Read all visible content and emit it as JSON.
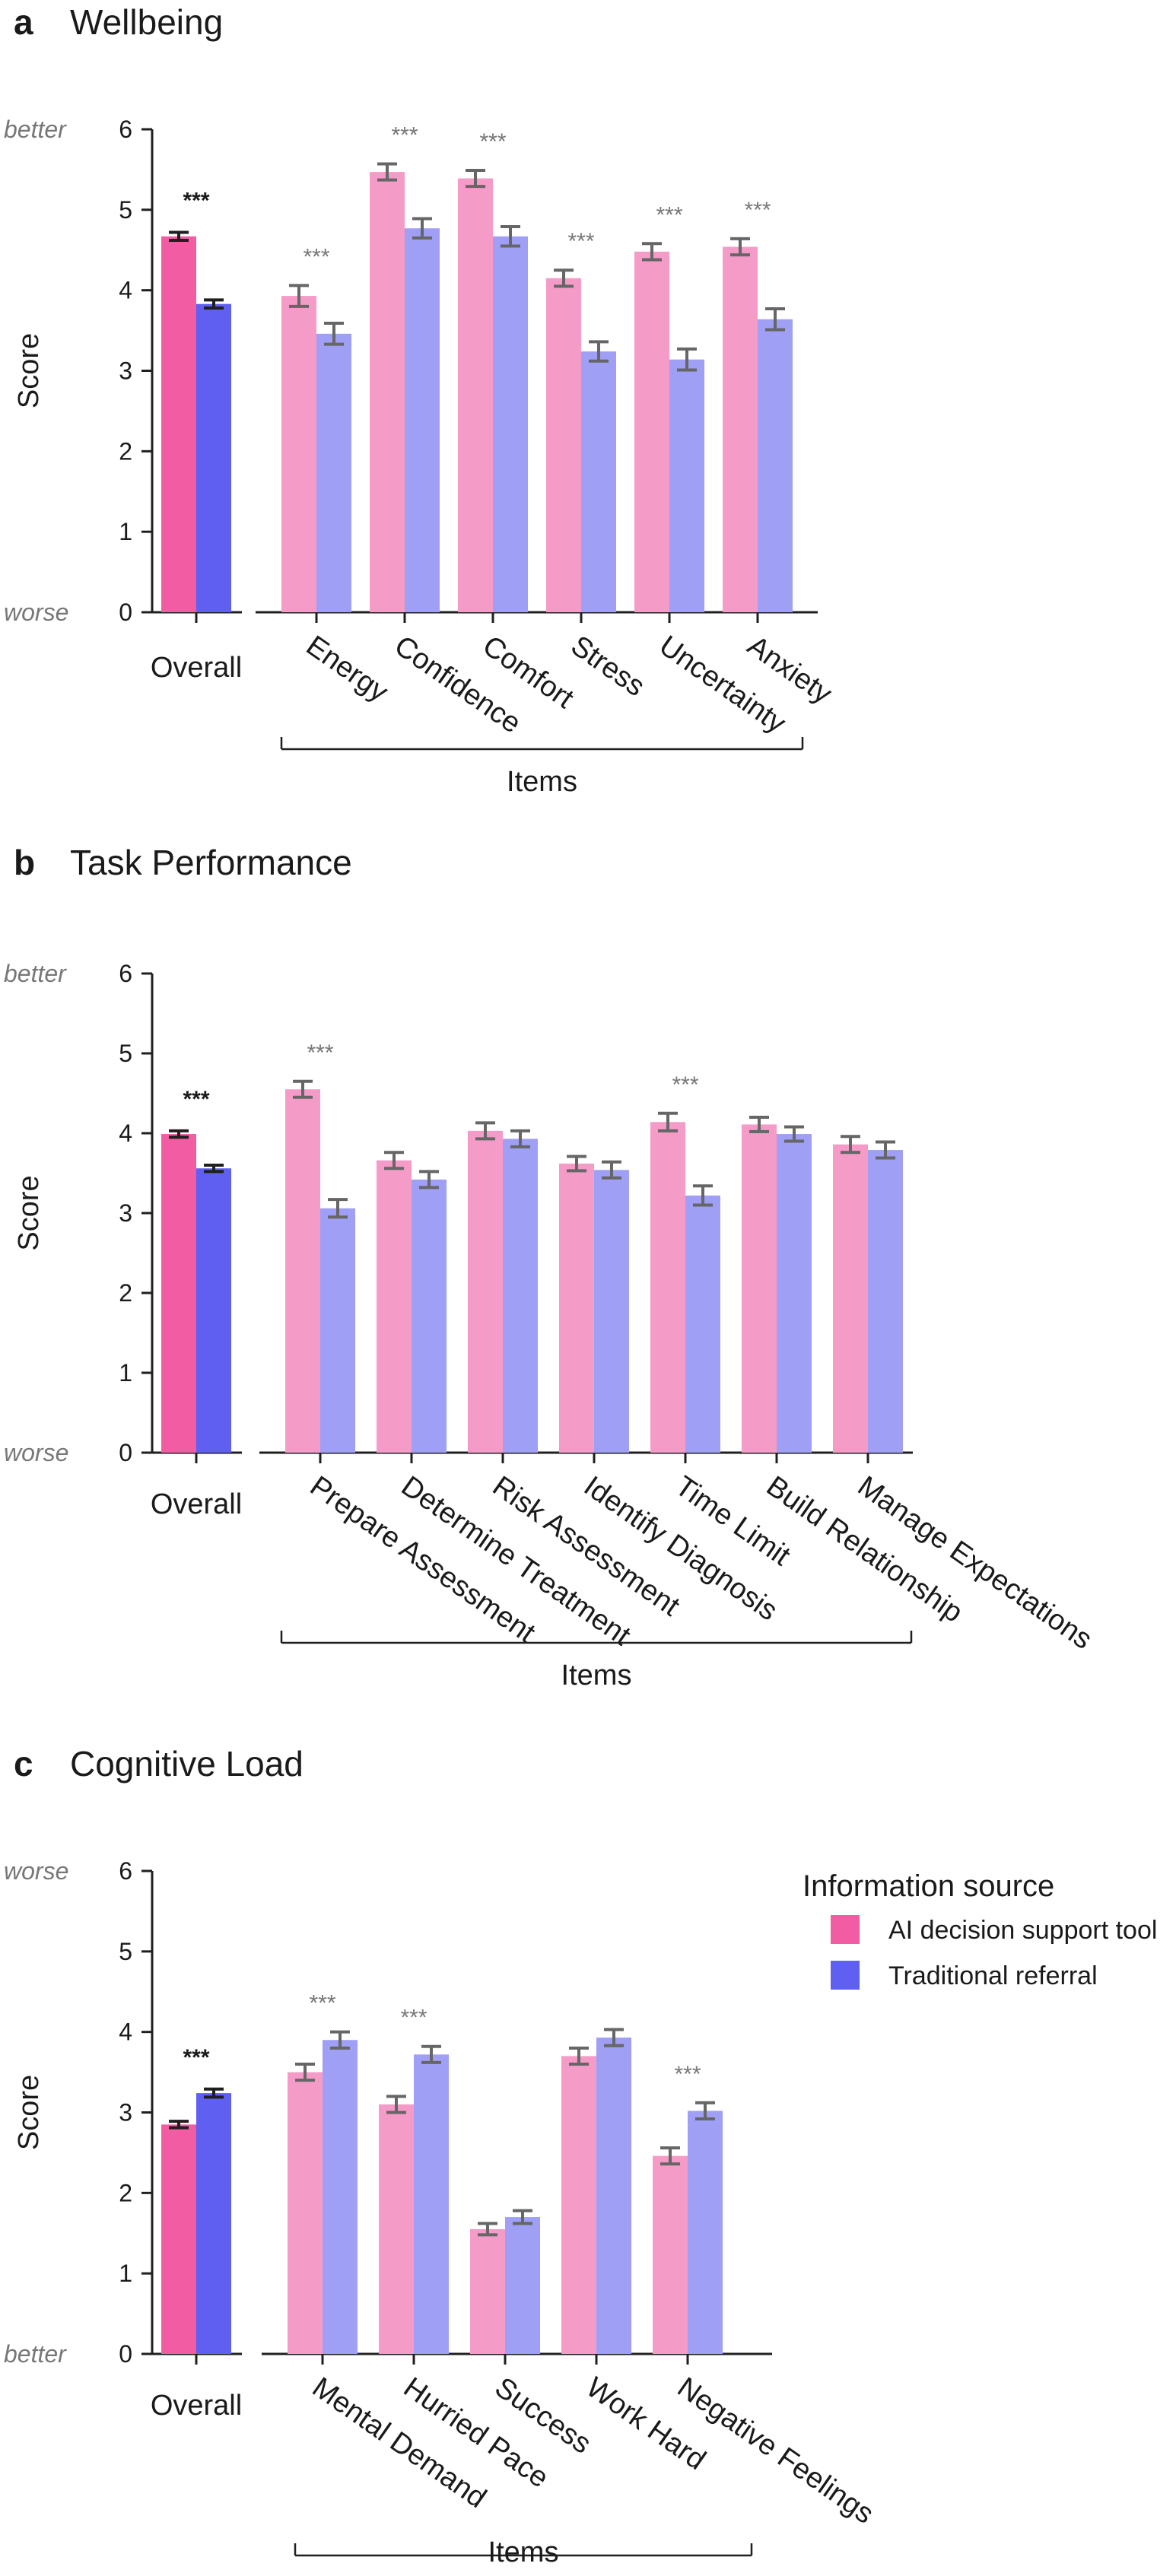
{
  "colors": {
    "ai_overall": "#f25ca2",
    "traditional_overall": "#5f5ff2",
    "ai_item": "#f59bc8",
    "traditional_item": "#9f9ff5",
    "error_overall": "#1f1f1f",
    "error_item": "#666666",
    "axis": "#1f1f1f",
    "qualifier": "#777777"
  },
  "legend": {
    "title": "Information source",
    "items": [
      {
        "label": "AI decision support tool",
        "color": "#f25ca2"
      },
      {
        "label": "Traditional referral",
        "color": "#5f5ff2"
      }
    ]
  },
  "chart_data": [
    {
      "type": "bar",
      "panel_label": "a",
      "title": "Wellbeing",
      "ylabel": "Score",
      "ylim": [
        0,
        6
      ],
      "yticks": [
        "0",
        "1",
        "2",
        "3",
        "4",
        "5",
        "6"
      ],
      "top_qualifier": "better",
      "bottom_qualifier": "worse",
      "overall": {
        "category": "Overall",
        "ai": 4.67,
        "ai_err": 0.05,
        "traditional": 3.83,
        "traditional_err": 0.05,
        "significance": "***"
      },
      "items_label": "Items",
      "categories": [
        "Energy",
        "Confidence",
        "Comfort",
        "Stress",
        "Uncertainty",
        "Anxiety"
      ],
      "series": [
        {
          "name": "AI decision support tool",
          "values": [
            3.93,
            5.47,
            5.39,
            4.15,
            4.48,
            4.54
          ],
          "errors": [
            0.13,
            0.1,
            0.1,
            0.1,
            0.1,
            0.1
          ]
        },
        {
          "name": "Traditional referral",
          "values": [
            3.46,
            4.77,
            4.67,
            3.24,
            3.14,
            3.64
          ],
          "errors": [
            0.13,
            0.12,
            0.12,
            0.12,
            0.13,
            0.13
          ]
        }
      ],
      "significance": [
        "***",
        "***",
        "***",
        "***",
        "***",
        "***"
      ]
    },
    {
      "type": "bar",
      "panel_label": "b",
      "title": "Task Performance",
      "ylabel": "Score",
      "ylim": [
        0,
        6
      ],
      "yticks": [
        "0",
        "1",
        "2",
        "3",
        "4",
        "5",
        "6"
      ],
      "top_qualifier": "better",
      "bottom_qualifier": "worse",
      "overall": {
        "category": "Overall",
        "ai": 3.99,
        "ai_err": 0.04,
        "traditional": 3.56,
        "traditional_err": 0.04,
        "significance": "***"
      },
      "items_label": "Items",
      "categories": [
        "Prepare Assessment",
        "Determine Treatment",
        "Risk Assessment",
        "Identify Diagnosis",
        "Time Limit",
        "Build Relationship",
        "Manage Expectations"
      ],
      "series": [
        {
          "name": "AI decision support tool",
          "values": [
            4.55,
            3.66,
            4.03,
            3.62,
            4.14,
            4.11,
            3.86
          ],
          "errors": [
            0.1,
            0.1,
            0.1,
            0.09,
            0.11,
            0.09,
            0.1
          ]
        },
        {
          "name": "Traditional referral",
          "values": [
            3.06,
            3.42,
            3.93,
            3.54,
            3.22,
            3.99,
            3.79
          ],
          "errors": [
            0.11,
            0.1,
            0.1,
            0.1,
            0.12,
            0.09,
            0.1
          ]
        }
      ],
      "significance": [
        "***",
        "",
        "",
        "",
        "***",
        "",
        ""
      ]
    },
    {
      "type": "bar",
      "panel_label": "c",
      "title": "Cognitive Load",
      "ylabel": "Score",
      "ylim": [
        0,
        6
      ],
      "yticks": [
        "0",
        "1",
        "2",
        "3",
        "4",
        "5",
        "6"
      ],
      "top_qualifier": "worse",
      "bottom_qualifier": "better",
      "overall": {
        "category": "Overall",
        "ai": 2.85,
        "ai_err": 0.04,
        "traditional": 3.24,
        "traditional_err": 0.05,
        "significance": "***"
      },
      "items_label": "Items",
      "categories": [
        "Mental Demand",
        "Hurried Pace",
        "Success",
        "Work Hard",
        "Negative Feelings"
      ],
      "series": [
        {
          "name": "AI decision support tool",
          "values": [
            3.5,
            3.1,
            1.55,
            3.7,
            2.46
          ],
          "errors": [
            0.1,
            0.1,
            0.07,
            0.1,
            0.1
          ]
        },
        {
          "name": "Traditional referral",
          "values": [
            3.9,
            3.72,
            1.7,
            3.93,
            3.02
          ],
          "errors": [
            0.1,
            0.1,
            0.08,
            0.1,
            0.1
          ]
        }
      ],
      "significance": [
        "***",
        "***",
        "",
        "",
        "***"
      ]
    }
  ]
}
